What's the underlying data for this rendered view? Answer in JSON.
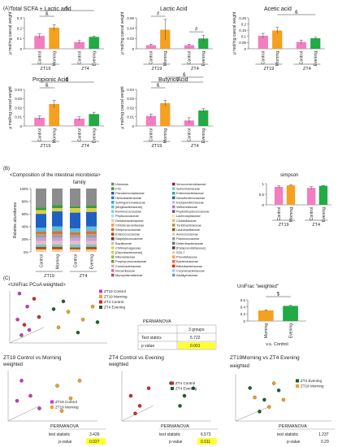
{
  "colors": {
    "control": "#f27ec0",
    "morning": "#f5a020",
    "evening": "#22aa44",
    "axis": "#555555",
    "highlight": "#ffff33",
    "pcoa_zt19_control": "#cc33cc",
    "pcoa_zt19_morning": "#f5a020",
    "pcoa_zt4_control": "#dd2222",
    "pcoa_zt4_evening": "#116622",
    "family_palette": [
      "#808080",
      "#3a9a3a",
      "#1f5fbf",
      "#2d7dd2",
      "#3aa0d8",
      "#56c0e0",
      "#7fd3ea",
      "#a8e0f0",
      "#f2c6a0",
      "#e89a5a",
      "#d86a2a",
      "#b04a1a",
      "#7a3010",
      "#c0c0c0",
      "#e0d040",
      "#bcd860",
      "#8fc050",
      "#60a040",
      "#f0a0b0",
      "#e07090",
      "#c04070",
      "#902050",
      "#70d0c0",
      "#40a0a0",
      "#207070",
      "#d0b0e0",
      "#a080c0",
      "#7050a0",
      "#f5e6a0",
      "#d8c070",
      "#b09040",
      "#806020",
      "#cfcfcf",
      "#9f9f9f",
      "#6f6f6f",
      "#404040",
      "#ffcc99",
      "#ff9966",
      "#ff6633",
      "#cc3300",
      "#99ccff",
      "#6699cc",
      "#336699",
      "#003366"
    ]
  },
  "panel_labels": {
    "a": "(A)",
    "b": "(B)",
    "c": "(C)"
  },
  "common": {
    "ylabel": "μ mol/mg caecal weight",
    "ylabel_abundance": "Relative abundance",
    "group_zt19": "ZT19",
    "group_zt4": "ZT4",
    "bar_labels": [
      "Control",
      "Morning",
      "Control",
      "Evening"
    ]
  },
  "chart_data": [
    {
      "type": "bar",
      "title": "Total SCFA + Lactic acid",
      "ylabel": "μ mol/mg caecal weight",
      "categories": [
        "Control",
        "Morning",
        "Control",
        "Evening"
      ],
      "groups": [
        "ZT19",
        "ZT4"
      ],
      "values": [
        0.125,
        0.205,
        0.065,
        0.115
      ],
      "errors": [
        0.02,
        0.03,
        0.015,
        0.008
      ],
      "ylim": [
        0,
        0.3
      ],
      "yticks": [
        "0",
        "0.1",
        "0.2",
        "0.3"
      ],
      "annotations": [
        "&",
        "&"
      ]
    },
    {
      "type": "bar",
      "title": "Lactic Acid",
      "ylabel": "μ mol/mg caecal weight",
      "categories": [
        "Control",
        "Morning",
        "Control",
        "Evening"
      ],
      "groups": [
        "ZT19",
        "ZT4"
      ],
      "values": [
        0.007,
        0.037,
        0.007,
        0.02
      ],
      "errors": [
        0.002,
        0.02,
        0.002,
        0.006
      ],
      "ylim": [
        0,
        0.06
      ],
      "yticks": [
        "0",
        "0.02",
        "0.04",
        "0.06"
      ],
      "annotations": [
        "#",
        "#"
      ]
    },
    {
      "type": "bar",
      "title": "Acetic acid",
      "ylabel": "μ mol/mg caecal weight",
      "categories": [
        "Control",
        "Morning",
        "Control",
        "Evening"
      ],
      "groups": [
        "ZT19",
        "ZT4"
      ],
      "values": [
        0.105,
        0.148,
        0.055,
        0.085
      ],
      "errors": [
        0.02,
        0.025,
        0.015,
        0.008
      ],
      "ylim": [
        0,
        0.25
      ],
      "yticks": [
        "0",
        "0.05",
        "0.1",
        "0.15",
        "0.2",
        "0.25"
      ],
      "annotations": [
        "&"
      ]
    },
    {
      "type": "bar",
      "title": "Propionic Acid",
      "ylabel": "μ mol/mg caecal weight",
      "categories": [
        "Control",
        "Morning",
        "Control",
        "Evening"
      ],
      "groups": [
        "ZT19",
        "ZT4"
      ],
      "values": [
        0.009,
        0.024,
        0.008,
        0.013
      ],
      "errors": [
        0.002,
        0.004,
        0.002,
        0.002
      ],
      "ylim": [
        0,
        0.04
      ],
      "yticks": [
        "0",
        "0.01",
        "0.02",
        "0.03",
        "0.04"
      ],
      "annotations": [
        "&",
        "&"
      ]
    },
    {
      "type": "bar",
      "title": "Butyric Acid",
      "ylabel": "μ mol/mg caecal weight",
      "categories": [
        "Control",
        "Morning",
        "Control",
        "Evening"
      ],
      "groups": [
        "ZT19",
        "ZT4"
      ],
      "values": [
        0.011,
        0.025,
        0.006,
        0.017
      ],
      "errors": [
        0.002,
        0.003,
        0.003,
        0.002
      ],
      "ylim": [
        0,
        0.04
      ],
      "yticks": [
        "0",
        "0.01",
        "0.02",
        "0.03",
        "0.04"
      ],
      "annotations": [
        "&",
        "&",
        "&"
      ]
    },
    {
      "type": "bar",
      "title": "simpson",
      "categories": [
        "Control",
        "Morning",
        "Control",
        "Evening"
      ],
      "groups": [
        "ZT19",
        "ZT4"
      ],
      "values": [
        0.85,
        0.92,
        0.8,
        0.9
      ],
      "errors": [
        0.05,
        0.02,
        0.06,
        0.02
      ],
      "ylim": [
        0,
        1
      ],
      "yticks": [
        "0",
        "0.5",
        "1"
      ]
    },
    {
      "type": "bar",
      "title": "UniFrac \"weighted\"",
      "categories": [
        "Morning",
        "Evening"
      ],
      "xlabel": "v.s. Control",
      "values": [
        0.3,
        0.43
      ],
      "errors": [
        0.02,
        0.02
      ],
      "ylim": [
        0,
        0.6
      ],
      "yticks": [
        "0",
        "0.2",
        "0.4",
        "0.6"
      ],
      "annotations": [
        "$"
      ]
    }
  ],
  "microbiota": {
    "title": "<Composition of the intestinal microbiota>",
    "subtitle": "family",
    "ylabel": "Relative abundance",
    "yticks": [
      "0%",
      "20%",
      "40%",
      "60%",
      "80%",
      "100%"
    ],
    "groups": [
      "ZT19",
      "ZT4"
    ],
    "bars": [
      "Control",
      "Morning",
      "Control",
      "Evening"
    ],
    "legend_col1": [
      "Unknown",
      "F16",
      "Pseudomonadaceae",
      "Helicobacteraceae",
      "Sphingomonadaceae",
      "[Mogibacteriaceae]",
      "Ruminococcaceae",
      "Peptococcaceae",
      "Dehalobacteriaceae",
      "Christensenellaceae",
      "Streptococcaceae",
      "Enterococcaceae",
      "Staphylococcaceae",
      "Bacillaceae",
      "Chitinophagaceae",
      "[Odoribacteraceae]",
      "Rikenellaceae",
      "Porphyromonadaceae",
      "Coriobacteriaceae",
      "Nocardiaceae",
      "Mycoplasmataceae"
    ],
    "legend_col2": [
      "Verrucomicrobiaceae",
      "Spirochaetaceae",
      "Enterobacteriaceae",
      "Desulfovibrionaceae",
      "Erysipelotrichaceae",
      "Veillonellaceae",
      "Peptostreptococcaceae",
      "Lachnospiraceae",
      "Clostridiaceae",
      "Turicibacteraceae",
      "Lactobacillaceae",
      "Aerococcaceae",
      "Planococcaceae",
      "Deferribacteraceae",
      "[Paraprevotellaceae]",
      "S24-7",
      "Prevotellaceae",
      "Bacteroidaceae",
      "Bifidobacteriaceae",
      "Corynebacteriaceae",
      "Alcaligenaceae"
    ]
  },
  "pcoa": {
    "title": "<UniFrac PCoA weighted>",
    "legend": [
      "ZT19 Control",
      "ZT19 Morning",
      "ZT4 Control",
      "ZT4 Evening"
    ],
    "permanova": {
      "title": "PERMANOVA",
      "col": "3 groups",
      "row1": "Test statics",
      "val1": "5.722",
      "row2": "p value",
      "val2": "0.001"
    }
  },
  "pcoa2": {
    "title": "ZT19 Control vs Morning",
    "subtitle": "weighted",
    "legend": [
      "ZT19 Control",
      "ZT19 Morning"
    ],
    "permanova": {
      "title": "PERMANOVA",
      "row1": "test statistic",
      "val1": "3.426",
      "row2": "p-value",
      "val2": "0.027"
    }
  },
  "pcoa3": {
    "title": "ZT4 Control vs Evening",
    "subtitle": "weighted",
    "legend": [
      "ZT4 Control",
      "ZT4 Evening"
    ],
    "permanova": {
      "title": "PERMANOVA",
      "row1": "test statistic",
      "val1": "6.573",
      "row2": "p-value",
      "val2": "0.011"
    }
  },
  "pcoa4": {
    "title": "ZT19Morning vs ZT4 Evening",
    "subtitle": "weighted",
    "legend": [
      "ZT4 Evening",
      "ZT19 Morning"
    ],
    "permanova": {
      "title": "PERMANOVA",
      "row1": "test statistic",
      "val1": "1.237",
      "row2": "p-value",
      "val2": "0.29"
    }
  }
}
